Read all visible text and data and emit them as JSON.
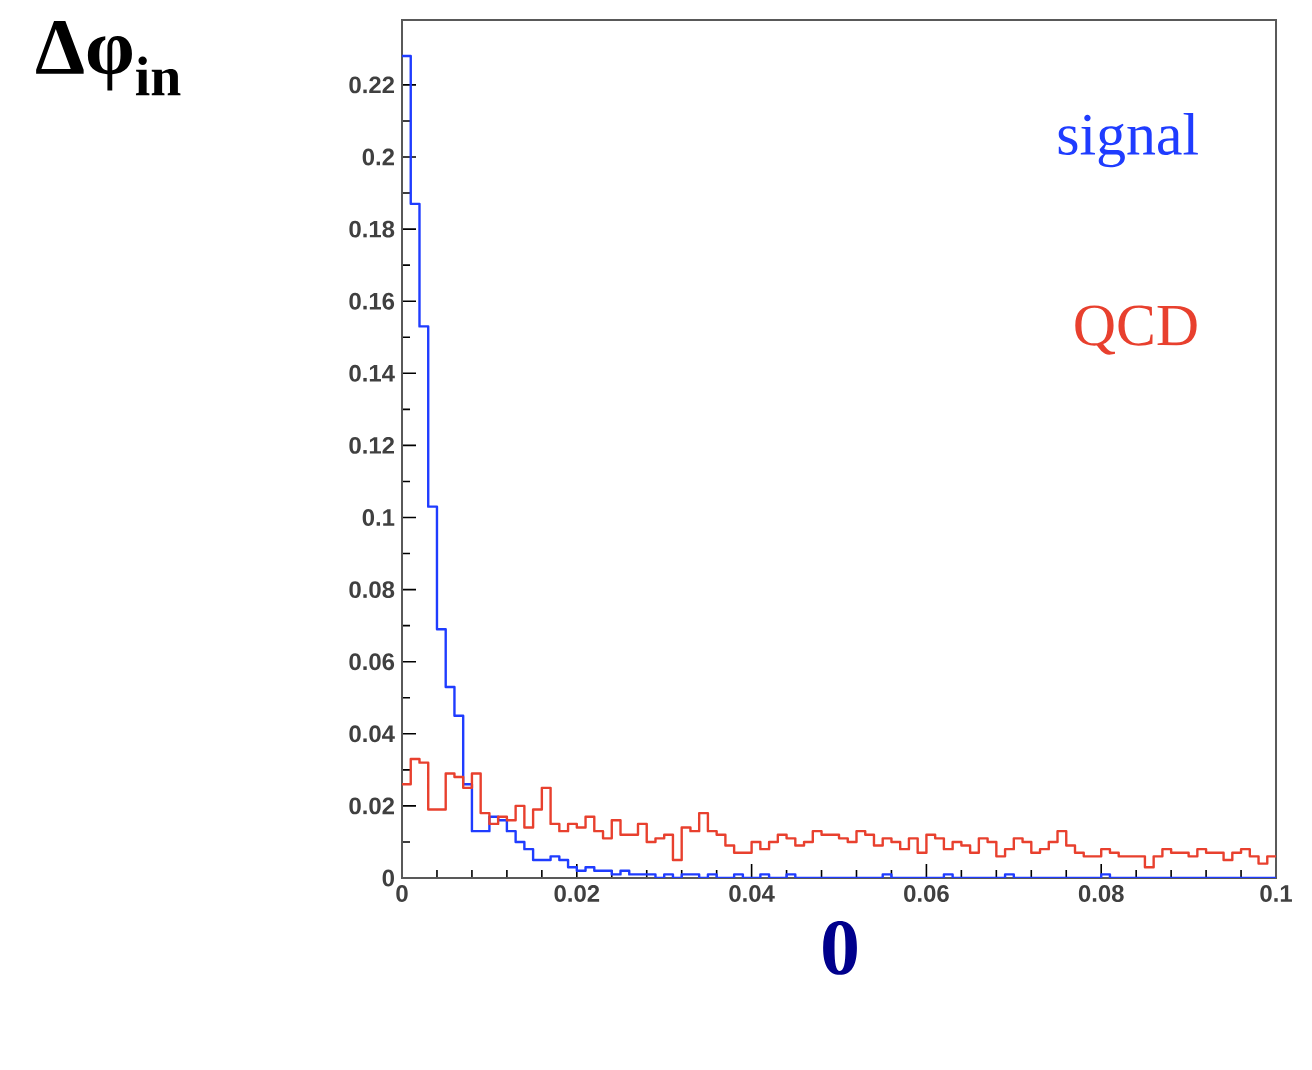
{
  "chart_data": {
    "type": "histogram",
    "ylabel": "Δφ$_{in}$",
    "xlabel": "0",
    "bins": [
      0,
      0.001,
      0.002,
      0.003,
      0.004,
      0.005,
      0.006,
      0.007,
      0.008,
      0.009,
      0.01,
      0.011,
      0.012,
      0.013,
      0.014,
      0.015,
      0.016,
      0.017,
      0.018,
      0.019,
      0.02,
      0.021,
      0.022,
      0.023,
      0.024,
      0.025,
      0.026,
      0.027,
      0.028,
      0.029,
      0.03,
      0.031,
      0.032,
      0.033,
      0.034,
      0.035,
      0.036,
      0.037,
      0.038,
      0.039,
      0.04,
      0.041,
      0.042,
      0.043,
      0.044,
      0.045,
      0.046,
      0.047,
      0.048,
      0.049,
      0.05,
      0.051,
      0.052,
      0.053,
      0.054,
      0.055,
      0.056,
      0.057,
      0.058,
      0.059,
      0.06,
      0.061,
      0.062,
      0.063,
      0.064,
      0.065,
      0.066,
      0.067,
      0.068,
      0.069,
      0.07,
      0.071,
      0.072,
      0.073,
      0.074,
      0.075,
      0.076,
      0.077,
      0.078,
      0.079,
      0.08,
      0.081,
      0.082,
      0.083,
      0.084,
      0.085,
      0.086,
      0.087,
      0.088,
      0.089,
      0.09,
      0.091,
      0.092,
      0.093,
      0.094,
      0.095,
      0.096,
      0.097,
      0.098,
      0.099,
      0.1
    ],
    "series": [
      {
        "name": "signal",
        "color": "#1f3cff",
        "values": [
          0.228,
          0.187,
          0.153,
          0.103,
          0.069,
          0.053,
          0.045,
          0.026,
          0.013,
          0.013,
          0.017,
          0.016,
          0.013,
          0.01,
          0.008,
          0.005,
          0.005,
          0.006,
          0.005,
          0.003,
          0.002,
          0.003,
          0.002,
          0.002,
          0.001,
          0.002,
          0.001,
          0.001,
          0.001,
          0,
          0.001,
          0,
          0.001,
          0.001,
          0,
          0.001,
          0,
          0,
          0.001,
          0,
          0,
          0.001,
          0,
          0,
          0.001,
          0,
          0,
          0,
          0,
          0,
          0,
          0,
          0,
          0,
          0,
          0.001,
          0,
          0,
          0,
          0,
          0,
          0,
          0.001,
          0,
          0,
          0,
          0,
          0,
          0,
          0.001,
          0,
          0,
          0,
          0,
          0,
          0,
          0,
          0,
          0,
          0,
          0.001,
          0,
          0,
          0,
          0,
          0,
          0,
          0,
          0,
          0,
          0,
          0,
          0,
          0,
          0,
          0,
          0,
          0,
          0,
          0
        ]
      },
      {
        "name": "QCD",
        "color": "#e8402e",
        "values": [
          0.026,
          0.033,
          0.032,
          0.019,
          0.019,
          0.029,
          0.028,
          0.025,
          0.029,
          0.018,
          0.015,
          0.017,
          0.016,
          0.02,
          0.014,
          0.019,
          0.025,
          0.015,
          0.013,
          0.015,
          0.014,
          0.017,
          0.013,
          0.011,
          0.016,
          0.012,
          0.012,
          0.015,
          0.01,
          0.011,
          0.012,
          0.005,
          0.014,
          0.013,
          0.018,
          0.013,
          0.012,
          0.009,
          0.007,
          0.007,
          0.01,
          0.008,
          0.01,
          0.012,
          0.011,
          0.009,
          0.01,
          0.013,
          0.012,
          0.012,
          0.011,
          0.01,
          0.013,
          0.012,
          0.009,
          0.011,
          0.01,
          0.008,
          0.011,
          0.007,
          0.012,
          0.011,
          0.008,
          0.01,
          0.009,
          0.007,
          0.011,
          0.01,
          0.006,
          0.008,
          0.011,
          0.01,
          0.007,
          0.008,
          0.01,
          0.013,
          0.009,
          0.007,
          0.006,
          0.006,
          0.008,
          0.007,
          0.006,
          0.006,
          0.006,
          0.003,
          0.006,
          0.008,
          0.007,
          0.007,
          0.006,
          0.008,
          0.007,
          0.007,
          0.005,
          0.007,
          0.008,
          0.006,
          0.004,
          0.006
        ]
      }
    ],
    "xlim": [
      0,
      0.1
    ],
    "ylim": [
      0,
      0.238
    ],
    "xticks": [
      0,
      0.02,
      0.04,
      0.06,
      0.08,
      0.1
    ],
    "yticks": [
      0,
      0.02,
      0.04,
      0.06,
      0.08,
      0.1,
      0.12,
      0.14,
      0.16,
      0.18,
      0.2,
      0.22
    ],
    "legend": "top right",
    "grid": false
  }
}
